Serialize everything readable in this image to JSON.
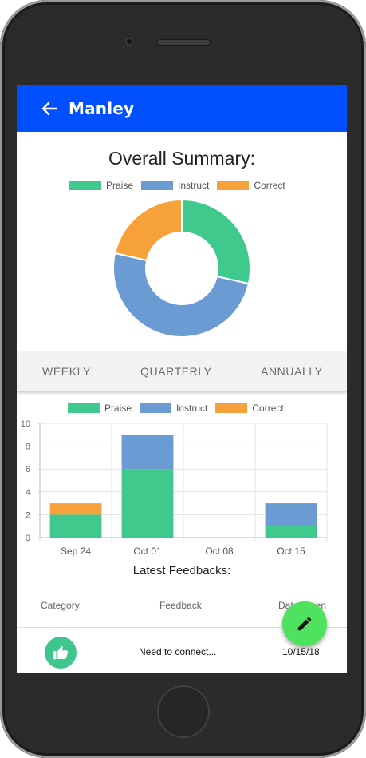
{
  "app_bar": {
    "title": "Manley"
  },
  "summary": {
    "title": "Overall Summary:",
    "legend": [
      "Praise",
      "Instruct",
      "Correct"
    ]
  },
  "tabs": [
    "WEEKLY",
    "QUARTERLY",
    "ANNUALLY"
  ],
  "colors": {
    "app_bar": "#0050ff",
    "praise": "#3fc98c",
    "instruct": "#6a9bd2",
    "correct": "#f7a13a",
    "fab": "#4ee25f"
  },
  "chart_data": [
    {
      "type": "pie",
      "title": "Overall Summary:",
      "labels": [
        "Praise",
        "Instruct",
        "Correct"
      ],
      "values": [
        4,
        7,
        3
      ],
      "legend": "top"
    },
    {
      "type": "bar",
      "stacked": true,
      "categories": [
        "Sep 24",
        "Oct 01",
        "Oct 08",
        "Oct 15"
      ],
      "series": [
        {
          "name": "Praise",
          "values": [
            2,
            6,
            0,
            1
          ]
        },
        {
          "name": "Instruct",
          "values": [
            0,
            3,
            0,
            2
          ]
        },
        {
          "name": "Correct",
          "values": [
            1,
            0,
            0,
            0
          ]
        }
      ],
      "ylim": [
        0,
        10
      ],
      "yticks": [
        0,
        2,
        4,
        6,
        8,
        10
      ],
      "grid": true,
      "legend": "top"
    }
  ],
  "feedbacks": {
    "title": "Latest Feedbacks:",
    "columns": [
      "Category",
      "Feedback",
      "Date Given"
    ],
    "rows": [
      {
        "category_icon": "thumbs-up-icon",
        "feedback": "Need to connect...",
        "date": "10/15/18"
      }
    ]
  },
  "fab": {
    "icon": "pencil-icon"
  }
}
